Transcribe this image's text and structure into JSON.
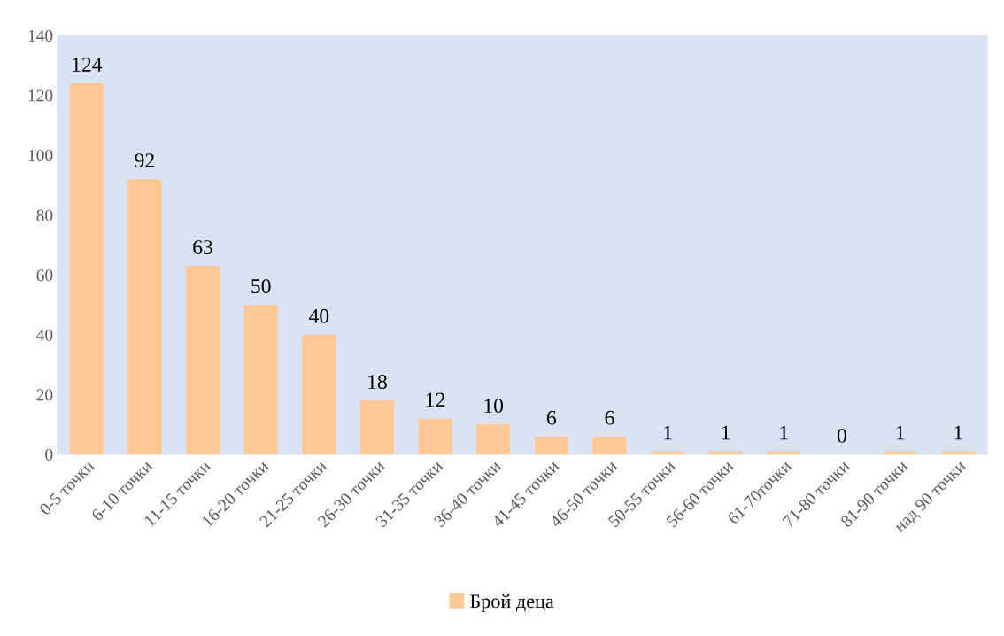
{
  "chart_data": {
    "type": "bar",
    "categories": [
      "0-5 точки",
      "6-10 точки",
      "11-15 точки",
      "16-20 точки",
      "21-25 точки",
      "26-30 точки",
      "31-35 точки",
      "36-40 точки",
      "41-45 точки",
      "46-50 точки",
      "50-55 точки",
      "56-60 точки",
      "61-70точки",
      "71-80 точки",
      "81-90 точки",
      "над 90 точки"
    ],
    "series": [
      {
        "name": "Брой деца",
        "color": "#ffc894",
        "values": [
          124,
          92,
          63,
          50,
          40,
          18,
          12,
          10,
          6,
          6,
          1,
          1,
          1,
          0,
          1,
          1
        ]
      }
    ],
    "ylim": [
      0,
      140
    ],
    "yticks": [
      0,
      20,
      40,
      60,
      80,
      100,
      120,
      140
    ],
    "data_labels": true,
    "grid": false,
    "legend": "bottom"
  }
}
